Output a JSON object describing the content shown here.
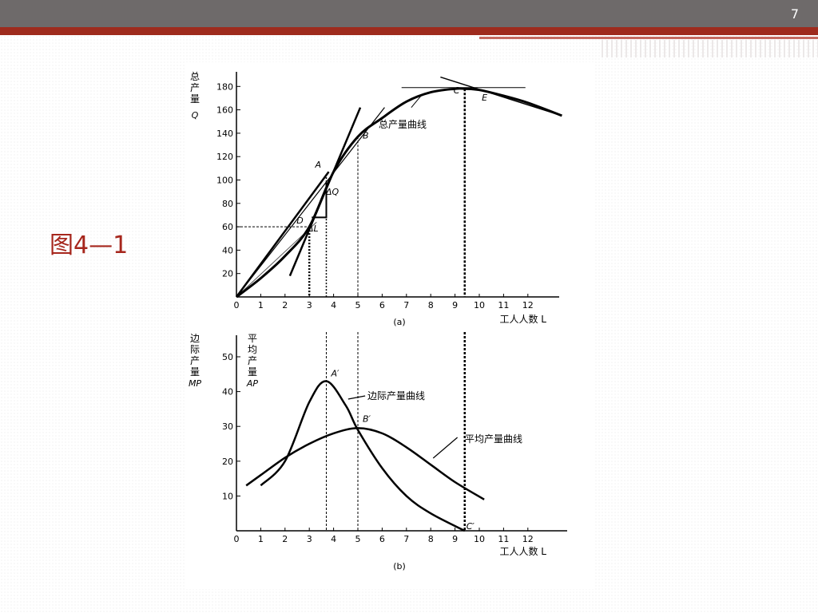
{
  "slide": {
    "number": "7",
    "figure_label": "图4—1"
  },
  "chart_data": [
    {
      "type": "line",
      "panel": "(a)",
      "caption": "(a)",
      "ylabel_chars": [
        "总",
        "产",
        "量"
      ],
      "ylabel_symbol": "Q",
      "xlabel": "工人人数 L",
      "xlim": [
        0,
        14
      ],
      "ylim": [
        0,
        180
      ],
      "xticks": [
        "0",
        "1",
        "2",
        "3",
        "4",
        "5",
        "6",
        "7",
        "8",
        "9",
        "10",
        "11",
        "12"
      ],
      "yticks": [
        "20",
        "40",
        "60",
        "80",
        "100",
        "120",
        "140",
        "160",
        "180"
      ],
      "series": [
        {
          "name": "总产量曲线",
          "x": [
            0,
            1,
            2,
            3,
            4,
            5,
            6,
            7,
            8,
            9,
            9.4,
            10,
            11,
            12,
            13.4
          ],
          "y": [
            0,
            16,
            35,
            60,
            107,
            137,
            153,
            167,
            175,
            178,
            178,
            177,
            172,
            166,
            155
          ]
        }
      ],
      "points": [
        {
          "label": "A",
          "x": 3.7,
          "y": 105
        },
        {
          "label": "B",
          "x": 5.0,
          "y": 137
        },
        {
          "label": "C",
          "x": 9.4,
          "y": 178
        },
        {
          "label": "D",
          "x": 3.0,
          "y": 60
        },
        {
          "label": "E",
          "x": 10.3,
          "y": 176
        }
      ],
      "annotations": [
        "ΔQ",
        "ΔL"
      ]
    },
    {
      "type": "line",
      "panel": "(b)",
      "caption": "(b)",
      "ylabel_left_chars": [
        "边",
        "际",
        "产",
        "量"
      ],
      "ylabel_left_symbol": "MP",
      "ylabel_right_chars": [
        "平",
        "均",
        "产",
        "量"
      ],
      "ylabel_right_symbol": "AP",
      "xlabel": "工人人数 L",
      "xlim": [
        0,
        14
      ],
      "ylim": [
        0,
        55
      ],
      "xticks": [
        "0",
        "1",
        "2",
        "3",
        "4",
        "5",
        "6",
        "7",
        "8",
        "9",
        "10",
        "11",
        "12"
      ],
      "yticks": [
        "10",
        "20",
        "30",
        "40",
        "50"
      ],
      "series": [
        {
          "name": "边际产量曲线",
          "x": [
            1,
            2,
            3,
            3.7,
            4.5,
            5,
            6,
            7,
            8,
            9.4
          ],
          "y": [
            13,
            20,
            37,
            43,
            36,
            29,
            18,
            10,
            5,
            0
          ]
        },
        {
          "name": "平均产量曲线",
          "x": [
            0.4,
            1,
            2,
            3,
            4,
            5,
            6,
            7,
            8,
            9,
            10.2
          ],
          "y": [
            13,
            16,
            21,
            25,
            28,
            29.5,
            28,
            24,
            19,
            14,
            9
          ]
        }
      ],
      "points": [
        {
          "label": "A′",
          "x": 3.7,
          "y": 43
        },
        {
          "label": "B′",
          "x": 5.0,
          "y": 29.5
        },
        {
          "label": "C′",
          "x": 9.4,
          "y": 0
        }
      ]
    }
  ]
}
